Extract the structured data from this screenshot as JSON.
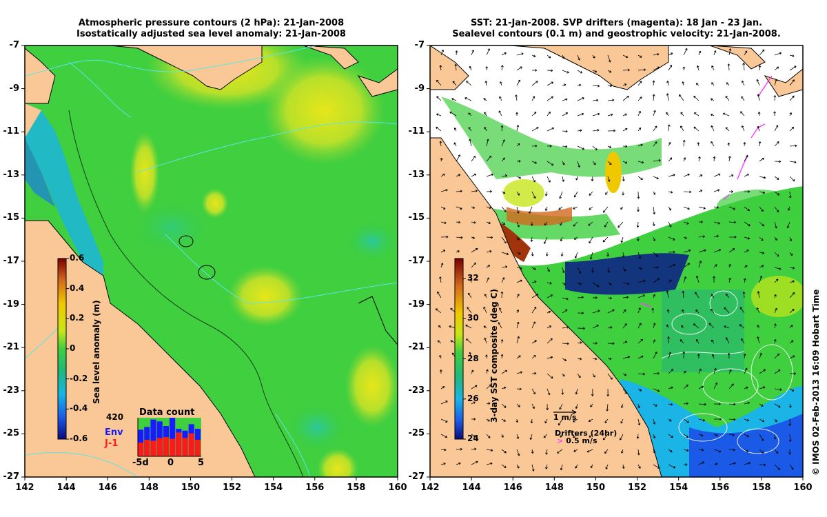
{
  "left_panel": {
    "title_line1": "Atmospheric pressure contours (2 hPa): 21-Jan-2008",
    "title_line2": "Isostatically adjusted sea level anomaly: 21-Jan-2008",
    "colorbar": {
      "label": "Sea level anomaly (m)",
      "ticks": [
        "0.6",
        "0.4",
        "0.2",
        "0",
        "-0.2",
        "-0.4",
        "-0.6"
      ],
      "range": [
        -0.6,
        0.6
      ]
    },
    "inset": {
      "title": "Data count",
      "max_label": "420",
      "env_label": "Env",
      "j1_label": "J-1",
      "x_ticks": [
        "-5d",
        "0",
        "5"
      ],
      "env_counts": [
        290,
        320,
        400,
        380,
        330,
        420,
        300,
        280,
        350,
        300
      ],
      "j1_counts": [
        150,
        180,
        170,
        200,
        210,
        190,
        260,
        200,
        250,
        180
      ],
      "colors": {
        "env": "#1a1aff",
        "j1": "#ff1a1a"
      }
    }
  },
  "right_panel": {
    "title_line1": "SST: 21-Jan-2008. SVP drifters (magenta): 18 Jan - 23 Jan.",
    "title_line2": "Sealevel contours (0.1 m) and geostrophic velocity: 21-Jan-2008.",
    "colorbar": {
      "label": "3-day SST composite (deg C)",
      "ticks": [
        "32",
        "30",
        "28",
        "26",
        "24"
      ],
      "range": [
        24,
        33
      ]
    },
    "legend": {
      "velocity_label": "1 m/s",
      "drifters_label": "Drifters (24hr)",
      "drifter_speed_label": "> 0.5 m/s"
    }
  },
  "axes": {
    "x_ticks": [
      "142",
      "144",
      "146",
      "148",
      "150",
      "152",
      "154",
      "156",
      "158",
      "160"
    ],
    "y_ticks": [
      "-7",
      "-9",
      "-11",
      "-13",
      "-15",
      "-17",
      "-19",
      "-21",
      "-23",
      "-25",
      "-27"
    ],
    "lon_range": [
      142,
      160
    ],
    "lat_range": [
      -27,
      -7
    ]
  },
  "credit": "© IMOS 02-Feb-2013 16:09 Hobart Time",
  "colors": {
    "land": "#f9c896",
    "ocean_green": "#3fcf3f",
    "frame": "#000000"
  }
}
